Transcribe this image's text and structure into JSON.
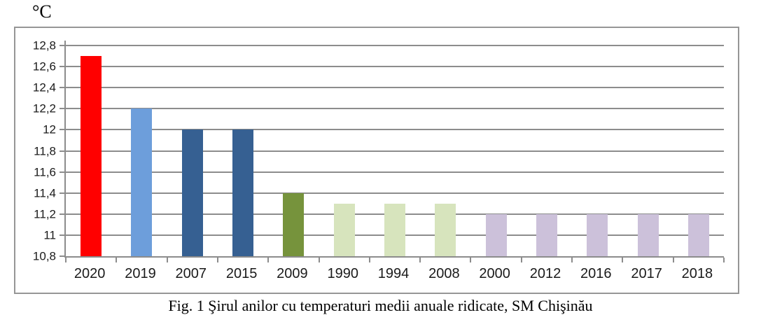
{
  "chart_data": {
    "type": "bar",
    "title": "Fig. 1 Şirul anilor cu temperaturi medii anuale ridicate, SM Chişinău",
    "unit_label": "°C",
    "categories": [
      "2020",
      "2019",
      "2007",
      "2015",
      "2009",
      "1990",
      "1994",
      "2008",
      "2000",
      "2012",
      "2016",
      "2017",
      "2018"
    ],
    "values": [
      12.7,
      12.2,
      12.0,
      12.0,
      11.4,
      11.3,
      11.3,
      11.3,
      11.2,
      11.2,
      11.2,
      11.2,
      11.2
    ],
    "bar_colors": [
      "#ff0000",
      "#6d9edb",
      "#366092",
      "#366092",
      "#76933c",
      "#d7e4bd",
      "#d7e4bd",
      "#d7e4bd",
      "#ccc1da",
      "#ccc1da",
      "#ccc1da",
      "#ccc1da",
      "#ccc1da"
    ],
    "ylim": [
      10.8,
      12.8
    ],
    "ytick_step": 0.2,
    "ytick_labels": [
      "10,8",
      "11",
      "11,2",
      "11,4",
      "11,6",
      "11,8",
      "12",
      "12,2",
      "12,4",
      "12,6",
      "12,8"
    ],
    "grid": true,
    "legend": "none",
    "gridline_color": "#8c8c8c",
    "axis_color": "#8c8c8c",
    "border_color": "#969696"
  }
}
